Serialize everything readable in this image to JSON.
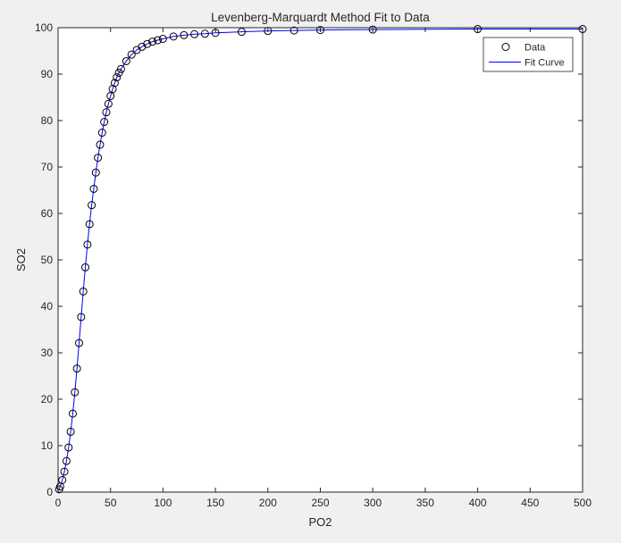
{
  "chart_data": {
    "type": "line",
    "title": "Levenberg-Marquardt Method Fit to Data",
    "xlabel": "PO2",
    "ylabel": "SO2",
    "xlim": [
      0,
      500
    ],
    "ylim": [
      0,
      100
    ],
    "xticks": [
      "0",
      "50",
      "100",
      "150",
      "200",
      "250",
      "300",
      "350",
      "400",
      "450",
      "500"
    ],
    "yticks": [
      "0",
      "10",
      "20",
      "30",
      "40",
      "50",
      "60",
      "70",
      "80",
      "90",
      "100"
    ],
    "grid": false,
    "legend_position": "top-right",
    "series": [
      {
        "name": "Data",
        "style": "markers",
        "marker": "circle",
        "color": "#000000",
        "x": [
          1,
          2,
          4,
          6,
          8,
          10,
          12,
          14,
          16,
          18,
          20,
          22,
          24,
          26,
          28,
          30,
          32,
          34,
          36,
          38,
          40,
          42,
          44,
          46,
          48,
          50,
          52,
          54,
          56,
          58,
          60,
          65,
          70,
          75,
          80,
          85,
          90,
          95,
          100,
          110,
          120,
          130,
          140,
          150,
          175,
          200,
          225,
          250,
          300,
          400,
          500
        ],
        "y": [
          0.6,
          1.2,
          2.6,
          4.4,
          6.7,
          9.6,
          13.0,
          16.9,
          21.5,
          26.6,
          32.1,
          37.7,
          43.2,
          48.4,
          53.3,
          57.7,
          61.8,
          65.3,
          68.8,
          72.0,
          74.8,
          77.4,
          79.7,
          81.8,
          83.6,
          85.3,
          86.8,
          88.1,
          89.3,
          90.3,
          91.1,
          92.8,
          94.2,
          95.2,
          95.9,
          96.5,
          97.0,
          97.3,
          97.6,
          98.1,
          98.4,
          98.6,
          98.7,
          98.9,
          99.1,
          99.3,
          99.4,
          99.5,
          99.6,
          99.7,
          99.7
        ]
      },
      {
        "name": "Fit Curve",
        "style": "line",
        "color": "#0000ff",
        "x": [
          1,
          2,
          4,
          6,
          8,
          10,
          12,
          14,
          16,
          18,
          20,
          22,
          24,
          26,
          28,
          30,
          32,
          34,
          36,
          38,
          40,
          42,
          44,
          46,
          48,
          50,
          52,
          54,
          56,
          58,
          60,
          65,
          70,
          75,
          80,
          85,
          90,
          95,
          100,
          110,
          120,
          130,
          140,
          150,
          175,
          200,
          225,
          250,
          300,
          400,
          500
        ],
        "y": [
          0.6,
          1.2,
          2.6,
          4.4,
          6.7,
          9.6,
          13.0,
          16.9,
          21.5,
          26.6,
          32.1,
          37.7,
          43.2,
          48.4,
          53.3,
          57.7,
          61.8,
          65.3,
          68.8,
          72.0,
          74.8,
          77.4,
          79.7,
          81.8,
          83.6,
          85.3,
          86.8,
          88.1,
          89.3,
          90.3,
          91.1,
          92.8,
          94.2,
          95.2,
          95.9,
          96.5,
          97.0,
          97.3,
          97.6,
          98.1,
          98.4,
          98.6,
          98.7,
          98.9,
          99.1,
          99.3,
          99.4,
          99.5,
          99.6,
          99.7,
          99.7
        ]
      }
    ]
  }
}
